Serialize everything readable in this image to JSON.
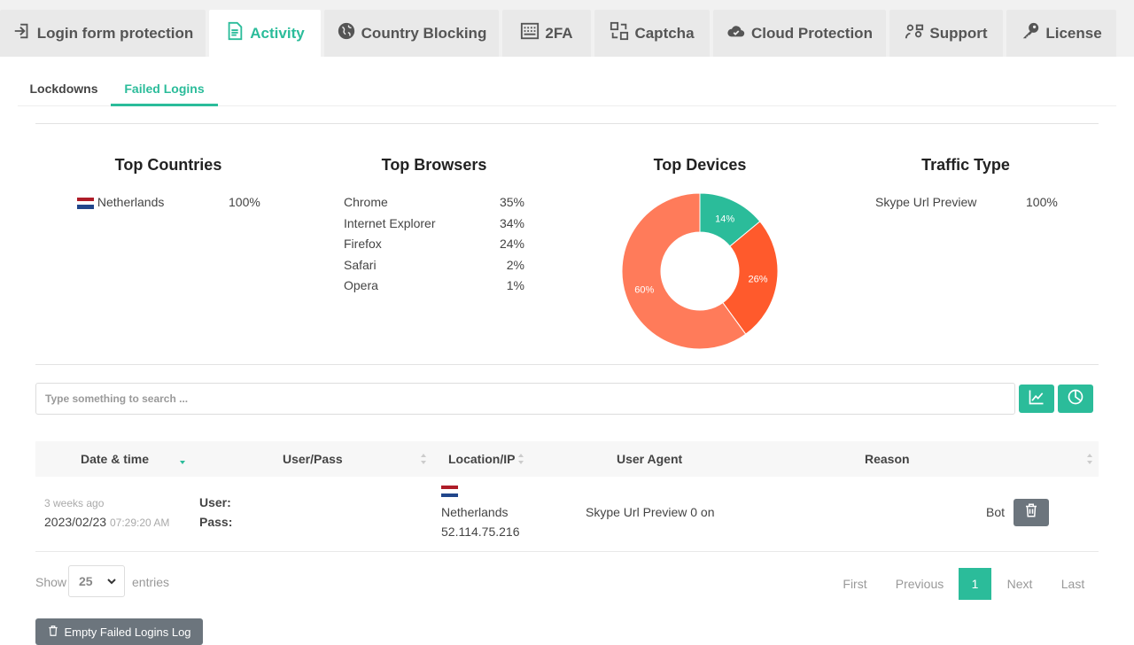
{
  "tabs": [
    {
      "label": "Login form protection",
      "icon": "login-icon"
    },
    {
      "label": "Activity",
      "icon": "document-icon"
    },
    {
      "label": "Country Blocking",
      "icon": "globe-icon"
    },
    {
      "label": "2FA",
      "icon": "keypad-icon"
    },
    {
      "label": "Captcha",
      "icon": "captcha-icon"
    },
    {
      "label": "Cloud Protection",
      "icon": "cloud-icon"
    },
    {
      "label": "Support",
      "icon": "support-icon"
    },
    {
      "label": "License",
      "icon": "key-icon"
    }
  ],
  "active_tab": "Activity",
  "subtabs": [
    "Lockdowns",
    "Failed Logins"
  ],
  "active_subtab": "Failed Logins",
  "stats": {
    "countries": {
      "title": "Top Countries",
      "rows": [
        {
          "name": "Netherlands",
          "value": "100%"
        }
      ]
    },
    "browsers": {
      "title": "Top Browsers",
      "rows": [
        {
          "name": "Chrome",
          "value": "35%"
        },
        {
          "name": "Internet Explorer",
          "value": "34%"
        },
        {
          "name": "Firefox",
          "value": "24%"
        },
        {
          "name": "Safari",
          "value": "2%"
        },
        {
          "name": "Opera",
          "value": "1%"
        }
      ]
    },
    "devices": {
      "title": "Top Devices"
    },
    "traffic": {
      "title": "Traffic Type",
      "rows": [
        {
          "name": "Skype Url Preview",
          "value": "100%"
        }
      ]
    }
  },
  "chart_data": {
    "type": "pie",
    "title": "Top Devices",
    "donut": true,
    "slices": [
      {
        "label": "14%",
        "value": 14,
        "color": "#2bbc9a"
      },
      {
        "label": "26%",
        "value": 26,
        "color": "#ff5a2c"
      },
      {
        "label": "60%",
        "value": 60,
        "color": "#ff7b5a"
      }
    ]
  },
  "search": {
    "placeholder": "Type something to search ..."
  },
  "table": {
    "columns": [
      "Date & time",
      "User/Pass",
      "Location/IP",
      "User Agent",
      "Reason"
    ],
    "rows": [
      {
        "relative_time": "3 weeks ago",
        "date": "2023/02/23",
        "time": "07:29:20 AM",
        "user_label": "User:",
        "pass_label": "Pass:",
        "country": "Netherlands",
        "ip": "52.114.75.216",
        "user_agent": "Skype Url Preview 0 on",
        "reason": "Bot"
      }
    ]
  },
  "footer": {
    "show_label": "Show",
    "entries_value": "25",
    "entries_label": "entries",
    "pager": [
      "First",
      "Previous",
      "1",
      "Next",
      "Last"
    ],
    "current_page": "1",
    "empty_button": "Empty Failed Logins Log"
  },
  "colors": {
    "accent": "#2bbc9a",
    "grey_button": "#6c757d"
  }
}
